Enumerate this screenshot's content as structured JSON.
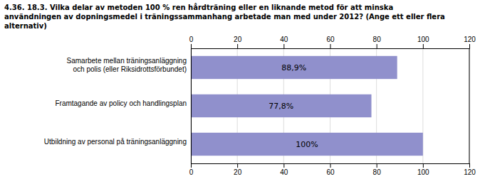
{
  "chart_data": {
    "type": "bar",
    "orientation": "horizontal",
    "title": "4.36. 18.3. Vilka delar av metoden 100 % ren hårdträning eller en liknande metod för att minska\nanvändningen av dopningsmedel i träningssammanhang arbetade man med under 2012? (Ange ett eller flera\nalternativ)",
    "categories": [
      "Samarbete mellan träningsanläggning\noch polis (eller Riksidrottsförbundet)",
      "Framtagande av policy och handlingsplan",
      "Utbildning av personal på träningsanläggning"
    ],
    "values": [
      88.9,
      77.8,
      100.0
    ],
    "value_labels": [
      "88,9%",
      "77,8%",
      "100%"
    ],
    "data_labels": true,
    "color": "#9090CC",
    "xlim": [
      0,
      120
    ],
    "xticks": [
      0,
      20,
      40,
      60,
      80,
      100,
      120
    ],
    "grid": true
  }
}
